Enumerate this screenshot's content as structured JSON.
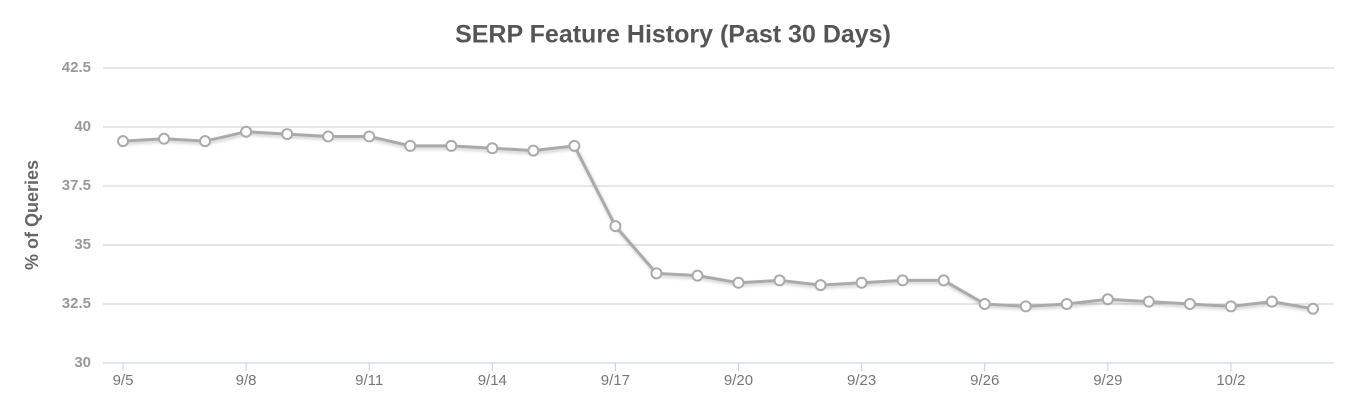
{
  "chart_data": {
    "type": "line",
    "title": "SERP Feature History (Past 30 Days)",
    "y_label": "% of Queries",
    "categories": [
      "9/5",
      null,
      null,
      "9/8",
      null,
      null,
      "9/11",
      null,
      null,
      "9/14",
      null,
      null,
      "9/17",
      null,
      null,
      "9/20",
      null,
      null,
      "9/23",
      null,
      null,
      "9/26",
      null,
      null,
      "9/29",
      null,
      null,
      "10/2",
      null,
      null
    ],
    "series": [
      {
        "name": "% of Queries",
        "color": "#aaaaaa",
        "values": [
          39.4,
          39.5,
          39.4,
          39.8,
          39.7,
          39.6,
          39.6,
          39.2,
          39.2,
          39.1,
          39.0,
          39.2,
          35.8,
          33.8,
          33.7,
          33.4,
          33.5,
          33.3,
          33.4,
          33.5,
          33.5,
          32.5,
          32.4,
          32.5,
          32.7,
          32.6,
          32.5,
          32.4,
          32.6,
          32.3
        ]
      }
    ],
    "ylim": [
      30,
      42.5
    ],
    "yticks": [
      30,
      32.5,
      35,
      37.5,
      40,
      42.5
    ],
    "grid": true
  }
}
